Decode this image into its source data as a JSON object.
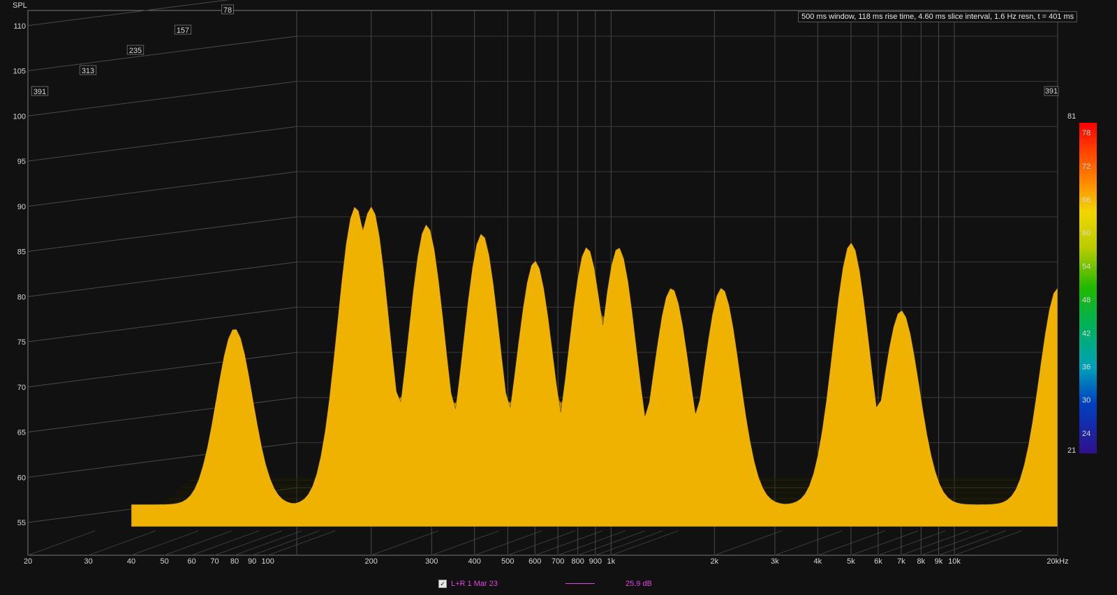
{
  "chart_data": {
    "type": "waterfall",
    "y_axis_title": "SPL",
    "y_ticks": [
      "110",
      "105",
      "100",
      "95",
      "90",
      "85",
      "80",
      "75",
      "70",
      "65",
      "60",
      "55"
    ],
    "ylim": [
      51,
      111
    ],
    "x_ticks": [
      {
        "f": 20,
        "label": "20"
      },
      {
        "f": 30,
        "label": "30"
      },
      {
        "f": 40,
        "label": "40"
      },
      {
        "f": 50,
        "label": "50"
      },
      {
        "f": 60,
        "label": "60"
      },
      {
        "f": 70,
        "label": "70"
      },
      {
        "f": 80,
        "label": "80"
      },
      {
        "f": 90,
        "label": "90"
      },
      {
        "f": 100,
        "label": "100"
      },
      {
        "f": 200,
        "label": "200"
      },
      {
        "f": 300,
        "label": "300"
      },
      {
        "f": 400,
        "label": "400"
      },
      {
        "f": 500,
        "label": "500"
      },
      {
        "f": 600,
        "label": "600"
      },
      {
        "f": 700,
        "label": "700"
      },
      {
        "f": 800,
        "label": "800"
      },
      {
        "f": 900,
        "label": "900"
      },
      {
        "f": 1000,
        "label": "1k"
      },
      {
        "f": 2000,
        "label": "2k"
      },
      {
        "f": 3000,
        "label": "3k"
      },
      {
        "f": 4000,
        "label": "4k"
      },
      {
        "f": 5000,
        "label": "5k"
      },
      {
        "f": 6000,
        "label": "6k"
      },
      {
        "f": 7000,
        "label": "7k"
      },
      {
        "f": 8000,
        "label": "8k"
      },
      {
        "f": 9000,
        "label": "9k"
      },
      {
        "f": 10000,
        "label": "10k"
      },
      {
        "f": 20000,
        "label": "20kHz"
      }
    ],
    "xlim": [
      20,
      20000
    ],
    "time_labels_ms": [
      "78",
      "157",
      "235",
      "313",
      "391"
    ],
    "time_label_right": "391",
    "info_text": "500 ms window, 118 ms rise time, 4.60 ms slice interval, 1.6 Hz resn, t = 401 ms",
    "colorbar": {
      "labels": [
        "81",
        "78",
        "72",
        "66",
        "60",
        "54",
        "48",
        "42",
        "36",
        "30",
        "24",
        "21"
      ],
      "range": [
        21,
        81
      ]
    },
    "series": [
      {
        "name": "L+R 1 Mar 23",
        "color": "#e040e0",
        "legend_value": "25.9 dB",
        "front_slice_peaks": [
          {
            "f": 80,
            "spl": 76.5
          },
          {
            "f": 180,
            "spl": 90.0
          },
          {
            "f": 200,
            "spl": 90.0
          },
          {
            "f": 290,
            "spl": 88.0
          },
          {
            "f": 420,
            "spl": 87.0
          },
          {
            "f": 600,
            "spl": 84.0
          },
          {
            "f": 850,
            "spl": 85.5
          },
          {
            "f": 1050,
            "spl": 85.5
          },
          {
            "f": 1500,
            "spl": 81.0
          },
          {
            "f": 2100,
            "spl": 81.0
          },
          {
            "f": 5000,
            "spl": 86.0
          },
          {
            "f": 7000,
            "spl": 78.5
          },
          {
            "f": 20000,
            "spl": 81.0
          }
        ]
      }
    ]
  }
}
